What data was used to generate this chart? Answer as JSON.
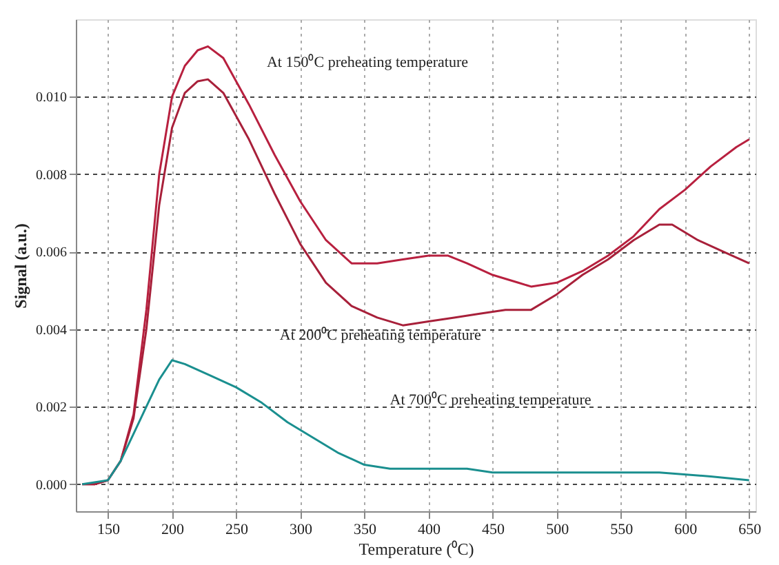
{
  "chart_data": {
    "type": "line",
    "xlabel": "Temperature (⁰C)",
    "ylabel": "Signal (a.u.)",
    "xlim": [
      125,
      655
    ],
    "ylim": [
      -0.0007,
      0.012
    ],
    "xticks": [
      150,
      200,
      250,
      300,
      350,
      400,
      450,
      500,
      550,
      600,
      650
    ],
    "yticks": [
      {
        "value": 0,
        "label": "0.000"
      },
      {
        "value": 0.002,
        "label": "0.002"
      },
      {
        "value": 0.004,
        "label": "0.004"
      },
      {
        "value": 0.006,
        "label": "0.006"
      },
      {
        "value": 0.008,
        "label": "0.008"
      },
      {
        "value": 0.01,
        "label": "0.010"
      }
    ],
    "grid": true,
    "line_style": "solid",
    "marker": "none",
    "series": [
      {
        "color": "#b8203f",
        "x": [
          130,
          140,
          150,
          160,
          170,
          180,
          190,
          200,
          210,
          220,
          228,
          240,
          260,
          280,
          300,
          320,
          340,
          360,
          380,
          400,
          415,
          430,
          450,
          470,
          480,
          500,
          520,
          540,
          560,
          580,
          600,
          620,
          640,
          650
        ],
        "values": [
          0,
          0,
          0.0001,
          0.0006,
          0.0018,
          0.0045,
          0.008,
          0.01,
          0.0108,
          0.0112,
          0.0113,
          0.011,
          0.0098,
          0.0085,
          0.0073,
          0.0063,
          0.0057,
          0.0057,
          0.0058,
          0.0059,
          0.0059,
          0.0057,
          0.0054,
          0.0052,
          0.0051,
          0.0052,
          0.0055,
          0.0059,
          0.0064,
          0.0071,
          0.0076,
          0.0082,
          0.0087,
          0.0089
        ]
      },
      {
        "color": "#a8203a",
        "x": [
          130,
          140,
          150,
          160,
          170,
          180,
          190,
          200,
          210,
          220,
          228,
          240,
          260,
          280,
          300,
          320,
          340,
          360,
          380,
          400,
          420,
          440,
          460,
          480,
          500,
          520,
          540,
          560,
          580,
          590,
          610,
          630,
          650
        ],
        "values": [
          0,
          0,
          0.0001,
          0.0006,
          0.0017,
          0.004,
          0.0072,
          0.0092,
          0.0101,
          0.0104,
          0.01045,
          0.0101,
          0.0089,
          0.0075,
          0.0062,
          0.0052,
          0.0046,
          0.0043,
          0.0041,
          0.0042,
          0.0043,
          0.0044,
          0.0045,
          0.0045,
          0.0049,
          0.0054,
          0.0058,
          0.0063,
          0.0067,
          0.0067,
          0.0063,
          0.006,
          0.0057
        ]
      },
      {
        "color": "#1a8f8f",
        "x": [
          130,
          150,
          160,
          170,
          180,
          190,
          200,
          210,
          230,
          250,
          270,
          290,
          310,
          330,
          350,
          370,
          400,
          430,
          450,
          500,
          550,
          580,
          620,
          650
        ],
        "values": [
          0,
          0.0001,
          0.0006,
          0.0013,
          0.002,
          0.0027,
          0.0032,
          0.0031,
          0.0028,
          0.0025,
          0.0021,
          0.0016,
          0.0012,
          0.0008,
          0.0005,
          0.0004,
          0.0004,
          0.0004,
          0.0003,
          0.0003,
          0.0003,
          0.0003,
          0.0002,
          0.0001
        ]
      }
    ],
    "annotations": [
      "At 150⁰C preheating temperature",
      "At 200⁰C preheating temperature",
      "At 700⁰C preheating temperature"
    ]
  }
}
